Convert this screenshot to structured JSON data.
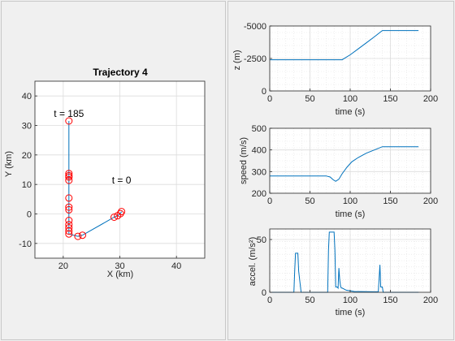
{
  "chart_data": [
    {
      "type": "scatter",
      "title": "Trajectory 4",
      "xlabel": "X (km)",
      "ylabel": "Y (km)",
      "xlim": [
        15,
        45
      ],
      "ylim": [
        -15,
        45
      ],
      "xticks": [
        20,
        30,
        40
      ],
      "yticks": [
        -10,
        0,
        10,
        20,
        30,
        40
      ],
      "grid": true,
      "series": [
        {
          "x": [
            30.3,
            30.1,
            29.6,
            29.0,
            23.4,
            22.6,
            21.0,
            21.0,
            21.0,
            21.0,
            21.0,
            21.0,
            21.0,
            21.0,
            21.0,
            21.0,
            21.0,
            21.0,
            21.0
          ],
          "y": [
            0.8,
            0.1,
            -0.6,
            -1.1,
            -7.2,
            -7.6,
            -6.8,
            -5.8,
            -4.7,
            -3.6,
            -2.2,
            1.4,
            2.3,
            5.4,
            11.4,
            12.5,
            13.0,
            13.7,
            31.5
          ]
        }
      ],
      "annotations": [
        {
          "text": "t = 0",
          "x": 30.3,
          "y": 9.0
        },
        {
          "text": "t = 185",
          "x": 21.0,
          "y": 31.5
        }
      ]
    },
    {
      "type": "line",
      "xlabel": "time (s)",
      "ylabel": "z (m)",
      "xlim": [
        0,
        200
      ],
      "ylim": [
        -5000,
        0
      ],
      "y_reversed": true,
      "xticks": [
        0,
        50,
        100,
        150,
        200
      ],
      "yticks": [
        -5000,
        -2500,
        0
      ],
      "ytick_labels": [
        "-5000",
        "-2500",
        "0"
      ],
      "grid": true,
      "series": [
        {
          "x": [
            0,
            90,
            100,
            110,
            120,
            130,
            140,
            185
          ],
          "y": [
            -2400,
            -2400,
            -2780,
            -3240,
            -3700,
            -4160,
            -4650,
            -4650
          ]
        }
      ]
    },
    {
      "type": "line",
      "xlabel": "time (s)",
      "ylabel": "speed (m/s)",
      "xlim": [
        0,
        200
      ],
      "ylim": [
        200,
        500
      ],
      "xticks": [
        0,
        50,
        100,
        150,
        200
      ],
      "yticks": [
        200,
        300,
        400,
        500
      ],
      "grid": true,
      "series": [
        {
          "x": [
            0,
            70,
            75,
            79,
            82,
            86,
            90,
            96,
            102,
            110,
            120,
            130,
            140,
            185
          ],
          "y": [
            280,
            280,
            275,
            262,
            255,
            265,
            290,
            320,
            345,
            365,
            385,
            400,
            415,
            415
          ]
        }
      ]
    },
    {
      "type": "line",
      "xlabel": "time (s)",
      "ylabel": "accel. (m/s²)",
      "xlim": [
        0,
        200
      ],
      "ylim": [
        0,
        60
      ],
      "xticks": [
        0,
        50,
        100,
        150,
        200
      ],
      "yticks": [
        0,
        50
      ],
      "grid": true,
      "series": [
        {
          "x": [
            0,
            30,
            31,
            32,
            35,
            36,
            39,
            40,
            72,
            73,
            74,
            80,
            81,
            82,
            84,
            85,
            86,
            87,
            88,
            89,
            90,
            95,
            105,
            130,
            135,
            136,
            137,
            138,
            140,
            141,
            185
          ],
          "y": [
            0,
            0,
            20,
            37,
            37,
            20,
            0,
            0,
            0,
            40,
            57,
            57,
            40,
            5,
            5,
            4,
            23,
            12,
            6,
            4,
            4,
            2,
            0.8,
            0.5,
            0.5,
            13,
            26,
            5,
            5,
            0,
            0
          ]
        }
      ]
    }
  ]
}
